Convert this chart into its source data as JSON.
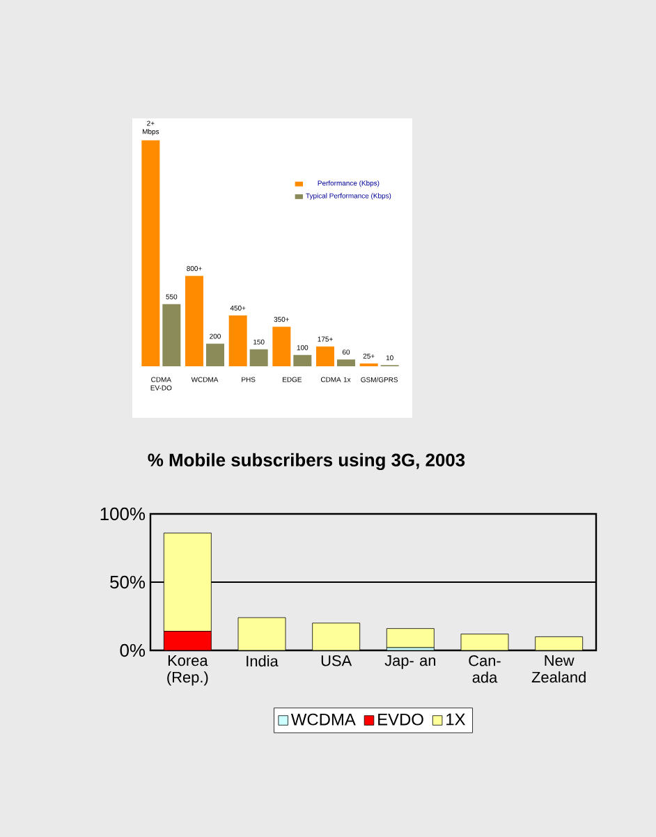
{
  "chart_data": [
    {
      "type": "bar",
      "categories": [
        "CDMA EV-DO",
        "WCDMA",
        "PHS",
        "EDGE",
        "CDMA 1x",
        "GSM/GPRS"
      ],
      "series": [
        {
          "name": "Performance (Kbps)",
          "color": "#ff8c00",
          "values": [
            2000,
            800,
            450,
            350,
            175,
            25
          ],
          "value_labels": [
            "2+ Mbps",
            "800+",
            "450+",
            "350+",
            "175+",
            "25+"
          ]
        },
        {
          "name": "Typical Performance (Kbps)",
          "color": "#8b8b5a",
          "values": [
            550,
            200,
            150,
            100,
            60,
            10
          ],
          "value_labels": [
            "550",
            "200",
            "150",
            "100",
            "60",
            "10"
          ]
        }
      ],
      "legend": "top right",
      "tick_labels": "x"
    },
    {
      "type": "bar",
      "stacked": true,
      "title": "% Mobile subscribers using 3G, 2003",
      "categories": [
        "Korea (Rep.)",
        "India",
        "USA",
        "Jap- an",
        "Can- ada",
        "New Zealand"
      ],
      "series": [
        {
          "name": "WCDMA",
          "color": "#ccffff",
          "values": [
            null,
            null,
            null,
            2,
            null,
            null
          ]
        },
        {
          "name": "EVDO",
          "color": "#ff0000",
          "values": [
            14,
            null,
            null,
            null,
            null,
            null
          ]
        },
        {
          "name": "1X",
          "color": "#ffff99",
          "values": [
            72,
            24,
            20,
            14,
            12,
            10
          ]
        }
      ],
      "ylim": [
        0,
        100
      ],
      "yticks": [
        {
          "value": 0,
          "label": "0%"
        },
        {
          "value": 50,
          "label": "50%"
        },
        {
          "value": 100,
          "label": "100%"
        }
      ],
      "grid": "y",
      "legend": "bottom"
    }
  ]
}
